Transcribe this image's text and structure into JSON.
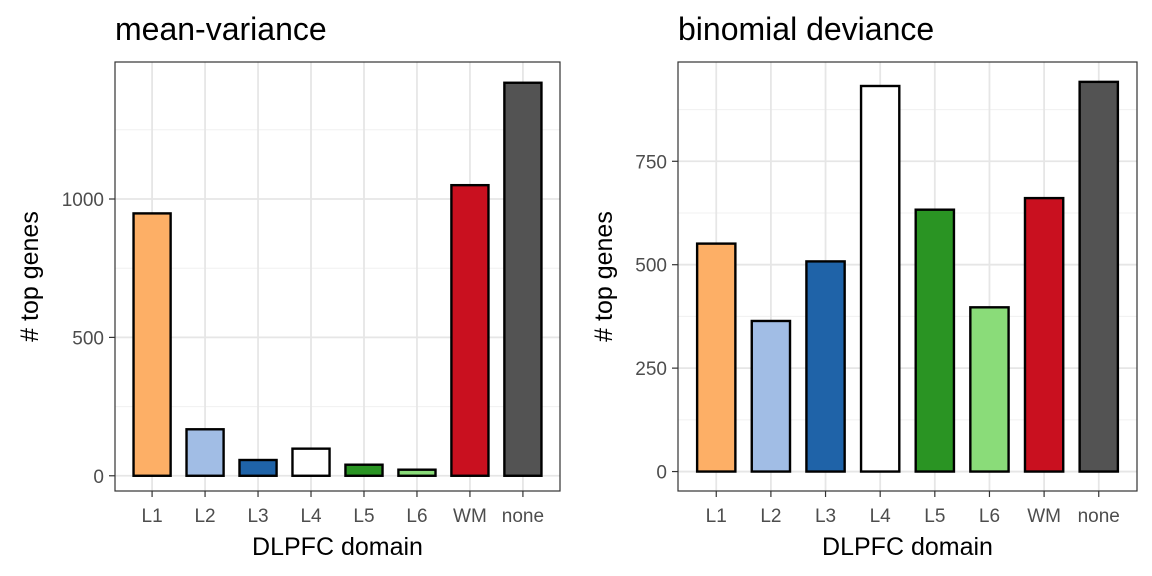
{
  "chart_data": [
    {
      "type": "bar",
      "title": "mean-variance",
      "xlabel": "DLPFC domain",
      "ylabel": "# top genes",
      "categories": [
        "L1",
        "L2",
        "L3",
        "L4",
        "L5",
        "L6",
        "WM",
        "none"
      ],
      "values": [
        948,
        168,
        57,
        98,
        40,
        22,
        1050,
        1420
      ],
      "colors": [
        "#FDAF66",
        "#A1BDE5",
        "#1F63A8",
        "#FFFFFF",
        "#2A9423",
        "#8ADC79",
        "#C9101F",
        "#535353"
      ],
      "ylim": [
        -55,
        1495
      ],
      "yticks": [
        0,
        500,
        1000
      ],
      "ytick_labels": [
        "0",
        "500",
        "1000"
      ],
      "grid": true
    },
    {
      "type": "bar",
      "title": "binomial deviance",
      "xlabel": "DLPFC domain",
      "ylabel": "# top genes",
      "categories": [
        "L1",
        "L2",
        "L3",
        "L4",
        "L5",
        "L6",
        "WM",
        "none"
      ],
      "values": [
        551,
        364,
        508,
        932,
        633,
        397,
        661,
        942
      ],
      "colors": [
        "#FDAF66",
        "#A1BDE5",
        "#1F63A8",
        "#FFFFFF",
        "#2A9423",
        "#8ADC79",
        "#C9101F",
        "#535353"
      ],
      "ylim": [
        -47,
        990
      ],
      "yticks": [
        0,
        250,
        500,
        750
      ],
      "ytick_labels": [
        "0",
        "250",
        "500",
        "750"
      ],
      "grid": true
    }
  ]
}
